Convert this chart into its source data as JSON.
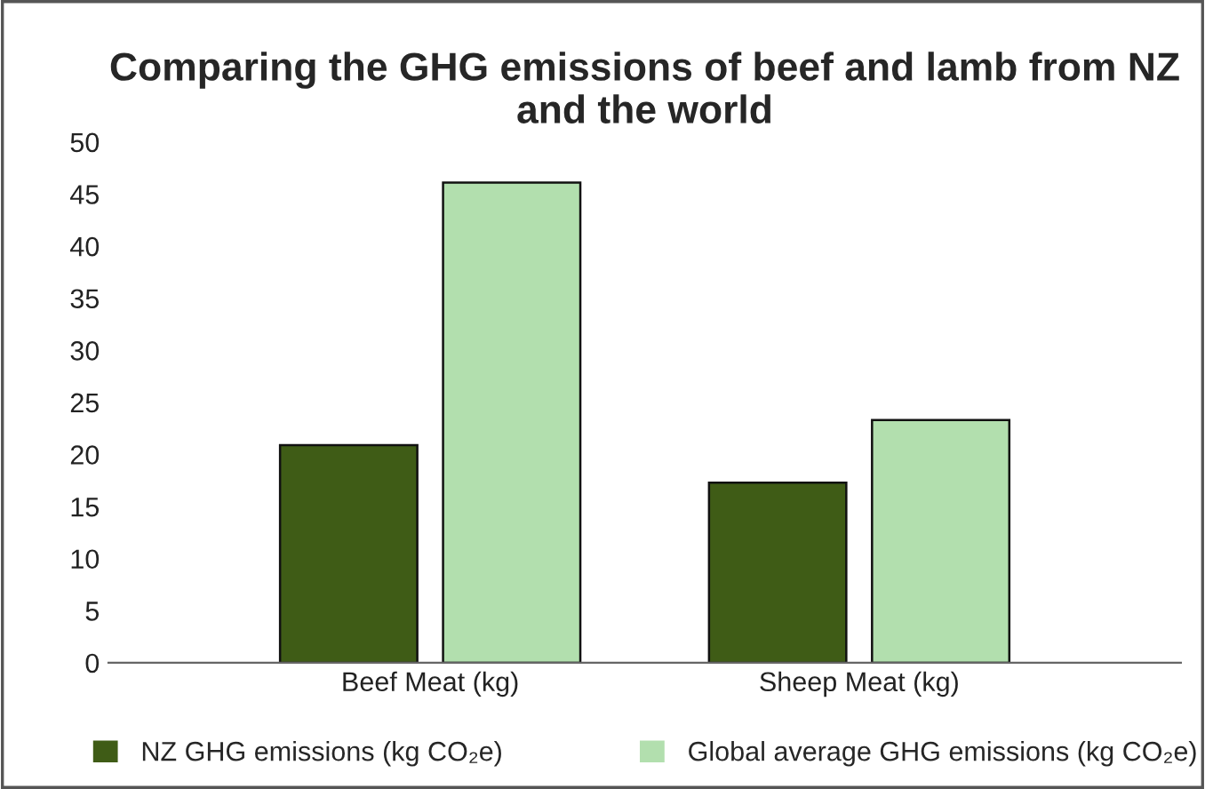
{
  "chart_data": {
    "type": "bar",
    "title": "Comparing the GHG emissions of beef and lamb from NZ and the world",
    "categories": [
      "Beef Meat (kg)",
      "Sheep Meat (kg)"
    ],
    "series": [
      {
        "name": "NZ GHG emissions (kg CO₂e)",
        "color": "#3f5c16",
        "values": [
          20.9,
          17.3
        ]
      },
      {
        "name": "Global average GHG emissions (kg CO₂e)",
        "color": "#b2dfae",
        "values": [
          46.1,
          23.3
        ]
      }
    ],
    "ylim": [
      0,
      50
    ],
    "yticks": [
      0,
      5,
      10,
      15,
      20,
      25,
      30,
      35,
      40,
      45,
      50
    ],
    "grid": false,
    "legend": "bottom"
  }
}
